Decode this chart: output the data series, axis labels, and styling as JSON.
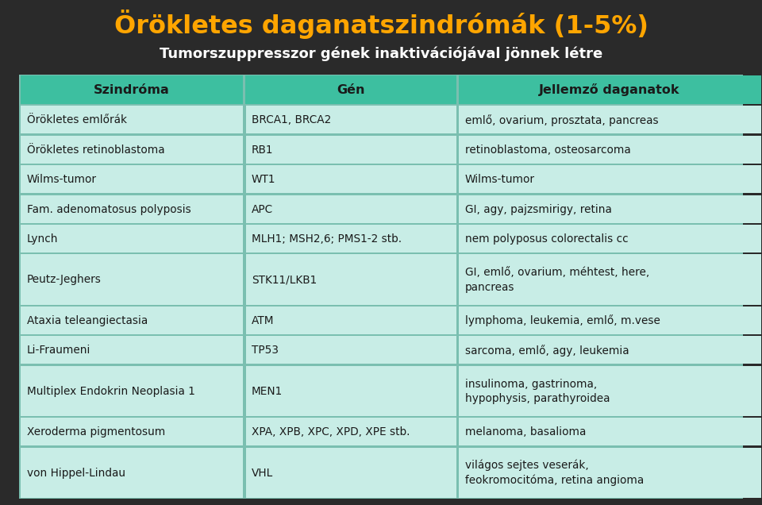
{
  "title1": "Örökletes daganatszindrómák (1-5%)",
  "title2": "Tumorszuppresszor gének inaktivációjával jönnek létre",
  "title1_color": "#FFA500",
  "title2_color": "#FFFFFF",
  "background_color": "#2a2a2a",
  "header_bg": "#3DBFA0",
  "header_text_color": "#1a1a1a",
  "row_bg": "#C8EDE6",
  "cell_text_color": "#1a1a1a",
  "border_color": "#7abfb0",
  "col_headers": [
    "Szindróma",
    "Gén",
    "Jellemző daganatok"
  ],
  "rows": [
    [
      "Örökletes emlőrák",
      "BRCA1, BRCA2",
      "emlő, ovarium, prosztata, pancreas"
    ],
    [
      "Örökletes retinoblastoma",
      "RB1",
      "retinoblastoma, osteosarcoma"
    ],
    [
      "Wilms-tumor",
      "WT1",
      "Wilms-tumor"
    ],
    [
      "Fam. adenomatosus polyposis",
      "APC",
      "GI, agy, pajzsmirigy, retina"
    ],
    [
      "Lynch",
      "MLH1; MSH2,6; PMS1-2 stb.",
      "nem polyposus colorectalis cc"
    ],
    [
      "Peutz-Jeghers",
      "STK11/LKB1",
      "GI, emlő, ovarium, méhtest, here,\npancreas"
    ],
    [
      "Ataxia teleangiectasia",
      "ATM",
      "lymphoma, leukemia, emlő, m.vese"
    ],
    [
      "Li-Fraumeni",
      "TP53",
      "sarcoma, emlő, agy, leukemia"
    ],
    [
      "Multiplex Endokrin Neoplasia 1",
      "MEN1",
      "insulinoma, gastrinoma,\nhypophysis, parathyroidea"
    ],
    [
      "Xeroderma pigmentosum",
      "XPA, XPB, XPC, XPD, XPE stb.",
      "melanoma, basalioma"
    ],
    [
      "von Hippel-Lindau",
      "VHL",
      "világos sejtes veserák,\nfeokromocitóma, retina angioma"
    ]
  ],
  "figsize": [
    9.6,
    6.36
  ],
  "dpi": 100
}
